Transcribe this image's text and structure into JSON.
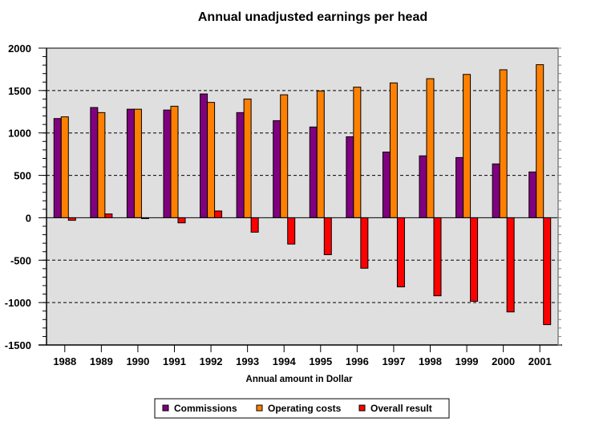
{
  "chart_data": {
    "type": "bar",
    "title": "Annual unadjusted earnings per head",
    "xlabel": "Annual amount in Dollar",
    "ylabel": "",
    "ylim": [
      -1500,
      2000
    ],
    "yticks": [
      -1500,
      -1000,
      -500,
      0,
      500,
      1000,
      1500,
      2000
    ],
    "ytick_labels": [
      "-1500",
      "-1000",
      "-500",
      "0",
      "500",
      "1000",
      "1500",
      "2000"
    ],
    "minor_tick_step": 100,
    "grid": "horizontal dashed at major ticks",
    "legend_position": "bottom",
    "categories": [
      "1988",
      "1989",
      "1990",
      "1991",
      "1992",
      "1993",
      "1994",
      "1995",
      "1996",
      "1997",
      "1998",
      "1999",
      "2000",
      "2001"
    ],
    "series": [
      {
        "name": "Commissions",
        "color": "#800080",
        "values": [
          1170,
          1300,
          1280,
          1270,
          1460,
          1240,
          1145,
          1070,
          955,
          775,
          730,
          710,
          635,
          540
        ]
      },
      {
        "name": "Operating costs",
        "color": "#FF8000",
        "values": [
          1190,
          1240,
          1280,
          1315,
          1360,
          1400,
          1450,
          1495,
          1540,
          1590,
          1640,
          1690,
          1745,
          1805
        ]
      },
      {
        "name": "Overall result",
        "color": "#FF0000",
        "values": [
          -30,
          45,
          -10,
          -60,
          80,
          -170,
          -310,
          -435,
          -595,
          -815,
          -920,
          -985,
          -1110,
          -1260
        ]
      }
    ],
    "plot_background": "#DFDFDF"
  }
}
